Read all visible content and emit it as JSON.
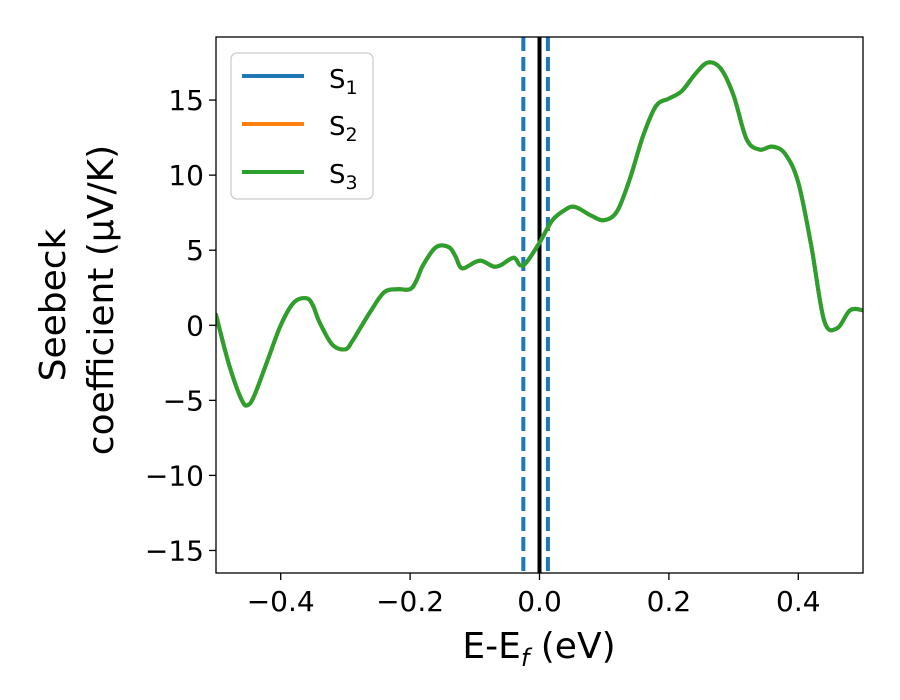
{
  "chart_data": {
    "type": "line",
    "title": "",
    "xlabel": {
      "main": "E-E",
      "sub": "f",
      "unit": " (eV)"
    },
    "ylabel": {
      "line1": "Seebeck",
      "line2": "coefficient  (μV/K)"
    },
    "xlim": [
      -0.5,
      0.5
    ],
    "ylim": [
      -16.5,
      19.2
    ],
    "x_ticks": [
      -0.4,
      -0.2,
      0.0,
      0.2,
      0.4
    ],
    "x_tick_labels": [
      "−0.4",
      "−0.2",
      "0.0",
      "0.2",
      "0.4"
    ],
    "y_ticks": [
      -15,
      -10,
      -5,
      0,
      5,
      10,
      15
    ],
    "y_tick_labels": [
      "−15",
      "−10",
      "−5",
      "0",
      "5",
      "10",
      "15"
    ],
    "grid": false,
    "legend_position": "top-left",
    "series": [
      {
        "name": "S",
        "subscript": "1",
        "color": "#1f77b4"
      },
      {
        "name": "S",
        "subscript": "2",
        "color": "#ff7f0e"
      },
      {
        "name": "S",
        "subscript": "3",
        "color": "#2ca02c"
      }
    ],
    "x": [
      -0.5,
      -0.48,
      -0.46,
      -0.45,
      -0.44,
      -0.42,
      -0.4,
      -0.38,
      -0.36,
      -0.35,
      -0.34,
      -0.32,
      -0.3,
      -0.29,
      -0.28,
      -0.26,
      -0.24,
      -0.22,
      -0.2,
      -0.19,
      -0.18,
      -0.16,
      -0.14,
      -0.13,
      -0.12,
      -0.1,
      -0.09,
      -0.08,
      -0.07,
      -0.06,
      -0.04,
      -0.03,
      -0.02,
      0.0,
      0.02,
      0.04,
      0.05,
      0.06,
      0.08,
      0.1,
      0.12,
      0.14,
      0.16,
      0.18,
      0.2,
      0.22,
      0.24,
      0.26,
      0.28,
      0.3,
      0.32,
      0.34,
      0.36,
      0.38,
      0.4,
      0.42,
      0.44,
      0.46,
      0.48,
      0.5
    ],
    "y": [
      0.7,
      -2.6,
      -5.0,
      -5.3,
      -4.6,
      -2.3,
      0.0,
      1.5,
      1.8,
      1.3,
      0.2,
      -1.3,
      -1.6,
      -1.1,
      -0.4,
      1.0,
      2.2,
      2.4,
      2.4,
      3.0,
      4.0,
      5.2,
      5.2,
      4.6,
      3.8,
      4.2,
      4.3,
      4.1,
      3.9,
      4.0,
      4.5,
      4.0,
      4.2,
      5.5,
      7.0,
      7.7,
      7.9,
      7.8,
      7.3,
      7.0,
      7.6,
      9.8,
      12.6,
      14.6,
      15.1,
      15.6,
      16.7,
      17.5,
      17.1,
      15.3,
      12.4,
      11.7,
      11.9,
      11.4,
      9.5,
      5.3,
      0.3,
      -0.2,
      1.0,
      1.0
    ],
    "vlines": [
      {
        "x": -0.025,
        "style": "dashed",
        "color": "#1f77b4"
      },
      {
        "x": 0.0,
        "style": "solid",
        "color": "#000000"
      },
      {
        "x": 0.013,
        "style": "dashed",
        "color": "#1f77b4"
      }
    ]
  }
}
